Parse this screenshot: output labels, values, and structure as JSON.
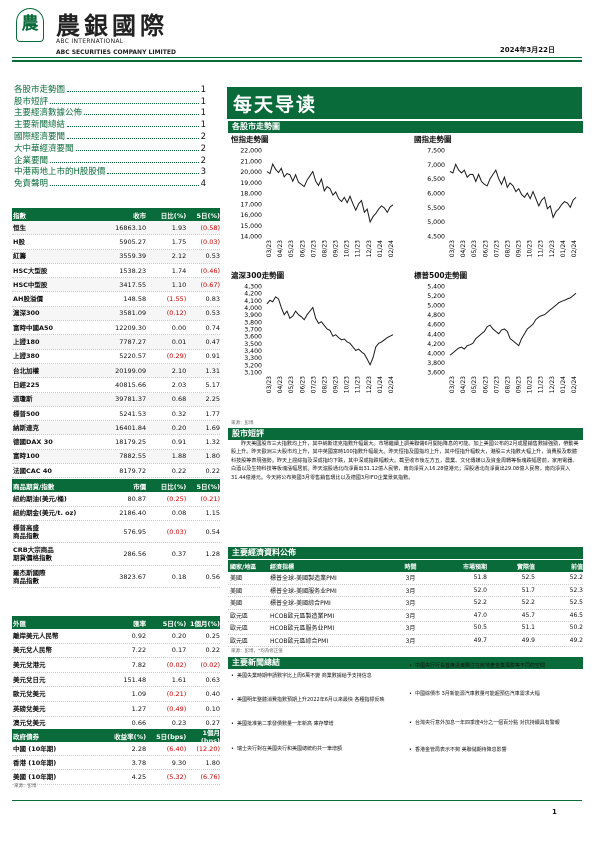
{
  "header": {
    "logo_char": "農",
    "cn_name": "農銀國際",
    "en_name_1": "ABC INTERNATIONAL",
    "en_name_2": "ABC SECURITIES COMPANY LIMITED",
    "date": "2024年3月22日"
  },
  "toc": [
    {
      "label": "各股市走勢圖",
      "page": "1"
    },
    {
      "label": "股市短評",
      "page": "1"
    },
    {
      "label": "主要經濟數據公佈",
      "page": "1"
    },
    {
      "label": "主要新聞總結",
      "page": "1"
    },
    {
      "label": "國際經濟要聞",
      "page": "2"
    },
    {
      "label": "大中華經濟要聞",
      "page": "2"
    },
    {
      "label": "企業要聞",
      "page": "2"
    },
    {
      "label": "中港兩地上市的H股股價",
      "page": "3"
    },
    {
      "label": "免責聲明",
      "page": "4"
    }
  ],
  "banner": "每天导读",
  "charts_section": "各股市走勢圖",
  "charts": [
    {
      "title": "恒指走勢圖",
      "type": "line",
      "yticks": [
        "22,000",
        "21,000",
        "20,000",
        "19,000",
        "18,000",
        "17,000",
        "16,000",
        "15,000",
        "14,000"
      ],
      "ylim": [
        14000,
        22000
      ],
      "xticks": [
        "03/23",
        "04/23",
        "05/23",
        "06/23",
        "07/23",
        "08/23",
        "09/23",
        "10/23",
        "11/23",
        "12/23",
        "01/24",
        "02/24"
      ],
      "values": [
        20000,
        19800,
        20700,
        20200,
        19900,
        20300,
        19500,
        19800,
        19700,
        19100,
        19700,
        19000,
        18800,
        18600,
        19200,
        19600,
        20000,
        19100,
        18700,
        19300,
        18200,
        18600,
        18400,
        17800,
        18100,
        17500,
        17200,
        17600,
        17100,
        17700,
        17000,
        16400,
        17000,
        17300,
        16200,
        16500,
        15300,
        15800,
        16100,
        16500,
        16800,
        16600,
        16200,
        16700,
        16900
      ]
    },
    {
      "title": "國指走勢圖",
      "type": "line",
      "yticks": [
        "7,500",
        "7,000",
        "6,500",
        "6,000",
        "5,500",
        "5,000",
        "4,500"
      ],
      "ylim": [
        4500,
        7500
      ],
      "xticks": [
        "03/23",
        "04/23",
        "05/23",
        "06/23",
        "07/23",
        "08/23",
        "09/23",
        "10/23",
        "11/23",
        "12/23",
        "01/24",
        "02/24"
      ],
      "values": [
        6750,
        6700,
        7000,
        6800,
        6700,
        6800,
        6550,
        6650,
        6650,
        6400,
        6650,
        6400,
        6300,
        6250,
        6500,
        6650,
        6800,
        6500,
        6300,
        6550,
        6200,
        6350,
        6250,
        6050,
        6150,
        5950,
        5850,
        6000,
        5800,
        6050,
        5800,
        5550,
        5750,
        5850,
        5450,
        5550,
        5150,
        5350,
        5450,
        5600,
        5700,
        5650,
        5500,
        5750,
        5850
      ]
    },
    {
      "title": "滬深300走勢圖",
      "type": "line",
      "yticks": [
        "4,300",
        "4,200",
        "4,100",
        "4,000",
        "3,900",
        "3,800",
        "3,700",
        "3,600",
        "3,500",
        "3,400",
        "3,300",
        "3,200",
        "3,100"
      ],
      "ylim": [
        3100,
        4300
      ],
      "xticks": [
        "03/23",
        "04/23",
        "05/23",
        "06/23",
        "07/23",
        "08/23",
        "09/23",
        "10/23",
        "11/23",
        "12/23",
        "01/24",
        "02/24"
      ],
      "values": [
        4050,
        4100,
        4080,
        4150,
        4120,
        4000,
        3900,
        3950,
        3850,
        3880,
        3950,
        3900,
        3870,
        3830,
        3900,
        3950,
        4000,
        3850,
        3780,
        3800,
        3750,
        3700,
        3680,
        3600,
        3620,
        3580,
        3550,
        3560,
        3520,
        3500,
        3450,
        3400,
        3420,
        3380,
        3350,
        3280,
        3200,
        3300,
        3450,
        3500,
        3520,
        3550,
        3580,
        3600,
        3620
      ]
    },
    {
      "title": "標普500走勢圖",
      "type": "line",
      "yticks": [
        "5,400",
        "5,200",
        "5,000",
        "4,800",
        "4,600",
        "4,400",
        "4,200",
        "4,000",
        "3,800",
        "3,600"
      ],
      "ylim": [
        3600,
        5400
      ],
      "xticks": [
        "03/23",
        "04/23",
        "05/23",
        "06/23",
        "07/23",
        "08/23",
        "09/23",
        "10/23",
        "11/23",
        "12/23",
        "01/24",
        "02/24"
      ],
      "values": [
        3950,
        4000,
        4050,
        4100,
        4120,
        4080,
        4150,
        4170,
        4200,
        4300,
        4350,
        4400,
        4450,
        4550,
        4580,
        4500,
        4450,
        4400,
        4480,
        4500,
        4450,
        4300,
        4250,
        4200,
        4150,
        4300,
        4400,
        4500,
        4550,
        4600,
        4700,
        4750,
        4780,
        4800,
        4850,
        4900,
        4950,
        5000,
        5050,
        5080,
        5100,
        5130,
        5150,
        5200,
        5250
      ]
    }
  ],
  "chart_source": "來源：彭博",
  "commentary_section": "股市短評",
  "commentary": "昨天美國股市三大指數均上升，其中納斯達克指數升幅最大。市場繼續上調美聯儲6月開始降息的可能。加上美國公布的2月成屋銷售數據強勁，帶動美股上升。昨天歐洲三大股市均上升，其中英國富時100指數升幅最大。昨天恒指及國指均上升，其中恒指升幅較大，港股三大指數大幅上升，消費股及軟體科技股等表現強勢。昨天上證綜指及深成指均下跌，其中深成指跌幅較大。截至收市後左方五，農業、文化傳媒以及資金周轉等板塊跌幅居前，家用電器、白酒以及生物科技等板塊漲幅居前。昨天滬股通北向淨賣出31.12億人民幣，南向淨買入16.28億港元；深股通北向淨賣出29.08億人民幣，南向淨買入31.44億港元。今天將公布英國3月零售銷售環比以及德國3月IFO企業景氣指數。",
  "index_table": {
    "headers": [
      "指數",
      "收市",
      "日比(%)",
      "5日(%)"
    ],
    "rows": [
      [
        "恒生",
        "16863.10",
        "1.93",
        "(0.58)"
      ],
      [
        "H股",
        "5905.27",
        "1.75",
        "(0.03)"
      ],
      [
        "紅籌",
        "3559.39",
        "2.12",
        "0.53"
      ],
      [
        "HSC大型股",
        "1538.23",
        "1.74",
        "(0.46)"
      ],
      [
        "HSC中型股",
        "3417.55",
        "1.10",
        "(0.67)"
      ],
      [
        "AH股溢價",
        "148.58",
        "(1.55)",
        "0.83"
      ],
      [
        "滬深300",
        "3581.09",
        "(0.12)",
        "0.53"
      ],
      [
        "富時中國A50",
        "12209.30",
        "0.00",
        "0.74"
      ],
      [
        "上證180",
        "7787.27",
        "0.01",
        "0.47"
      ],
      [
        "上證380",
        "5220.57",
        "(0.29)",
        "0.91"
      ],
      [
        "台北加權",
        "20199.09",
        "2.10",
        "1.31"
      ],
      [
        "日經225",
        "40815.66",
        "2.03",
        "5.17"
      ],
      [
        "道瓊斯",
        "39781.37",
        "0.68",
        "2.25"
      ],
      [
        "標普500",
        "5241.53",
        "0.32",
        "1.77"
      ],
      [
        "納斯達克",
        "16401.84",
        "0.20",
        "1.69"
      ],
      [
        "德國DAX 30",
        "18179.25",
        "0.91",
        "1.32"
      ],
      [
        "富時100",
        "7882.55",
        "1.88",
        "1.80"
      ],
      [
        "法國CAC 40",
        "8179.72",
        "0.22",
        "0.22"
      ]
    ]
  },
  "commodity_table": {
    "headers": [
      "商品期貨/指數",
      "市價",
      "日比(%)",
      "5日(%)"
    ],
    "rows": [
      [
        "紐約期油(美元/桶)",
        "80.87",
        "(0.25)",
        "(0.21)"
      ],
      [
        "紐約期金(美元/t. oz)",
        "2186.40",
        "0.08",
        "1.15"
      ],
      [
        "標普高盛\n商品指數",
        "576.95",
        "(0.03)",
        "0.54"
      ],
      [
        "CRB大宗商品\n期貨價格指數",
        "286.56",
        "0.37",
        "1.28"
      ],
      [
        "羅杰斯國際\n商品指數",
        "3823.67",
        "0.18",
        "0.56"
      ]
    ]
  },
  "fx_table": {
    "headers": [
      "外匯",
      "匯率",
      "5日(%)",
      "1個月(%)"
    ],
    "rows": [
      [
        "離岸美元人民幣",
        "0.92",
        "0.20",
        "0.25"
      ],
      [
        "美元兌人民幣",
        "7.22",
        "0.17",
        "0.22"
      ],
      [
        "美元兌港元",
        "7.82",
        "(0.02)",
        "(0.02)"
      ],
      [
        "美元兌日元",
        "151.48",
        "1.61",
        "0.63"
      ],
      [
        "歐元兌美元",
        "1.09",
        "(0.21)",
        "0.40"
      ],
      [
        "英磅兌美元",
        "1.27",
        "(0.49)",
        "0.10"
      ],
      [
        "澳元兌美元",
        "0.66",
        "0.23",
        "0.27"
      ]
    ]
  },
  "bond_table": {
    "headers": [
      "政府債券",
      "收益率(%)",
      "5日(bps)",
      "1個月(bps)"
    ],
    "rows": [
      [
        "中國 (10年期)",
        "2.28",
        "(6.40)",
        "(12.20)"
      ],
      [
        "香港 (10年期)",
        "3.78",
        "9.30",
        "1.80"
      ],
      [
        "美國 (10年期)",
        "4.25",
        "(5.32)",
        "(6.76)"
      ]
    ]
  },
  "left_source": "來源：彭博",
  "econ_section": "主要經濟資料公佈",
  "econ": {
    "headers": [
      "國家/地區",
      "經濟指標",
      "時間",
      "市場預期",
      "實際值",
      "前值"
    ],
    "rows": [
      [
        "美國",
        "標普全球-美國製造業PMI",
        "3月",
        "51.8",
        "52.5",
        "52.2"
      ],
      [
        "美國",
        "標普全球-美國服务业PMI",
        "3月",
        "52.0",
        "51.7",
        "52.3"
      ],
      [
        "美國",
        "標普全球-美國綜合PMI",
        "3月",
        "52.2",
        "52.2",
        "52.5"
      ],
      [
        "歐元區",
        "HCOB歐元區製造業PMI",
        "3月",
        "47.0",
        "45.7",
        "46.5"
      ],
      [
        "歐元區",
        "HCOB歐元區服务业PMI",
        "3月",
        "50.5",
        "51.1",
        "50.2"
      ],
      [
        "歐元區",
        "HCOB歐元區綜合PMI",
        "3月",
        "49.7",
        "49.9",
        "49.2"
      ]
    ]
  },
  "econ_source": "來源：彭博，*均為修正值",
  "news_section": "主要新聞總結",
  "news_left": [
    "美國失業時期申請數字比上周6萬不變 商業數據給予支持信息",
    "美國明年整體消費指數預期上升2022年6月以來最快 各種指標反映",
    "美國批准第二季發債數量一年新高 庫存攀增",
    "瑞士央行對在美國央行和美國總統約共一筆增額"
  ],
  "news_right": [
    "中國央行行長首席遠東關注在房地產金業風險等不同的空間",
    "中國綜債市 3月新能源汽車數量可能超預估汽車需求大幅",
    "台灣央行意外加息一年四季度4分之一個百分點 对抗持續具有警報",
    "香港金管局表示不夠 美聯儲期待降息影響"
  ],
  "page_number": "1"
}
